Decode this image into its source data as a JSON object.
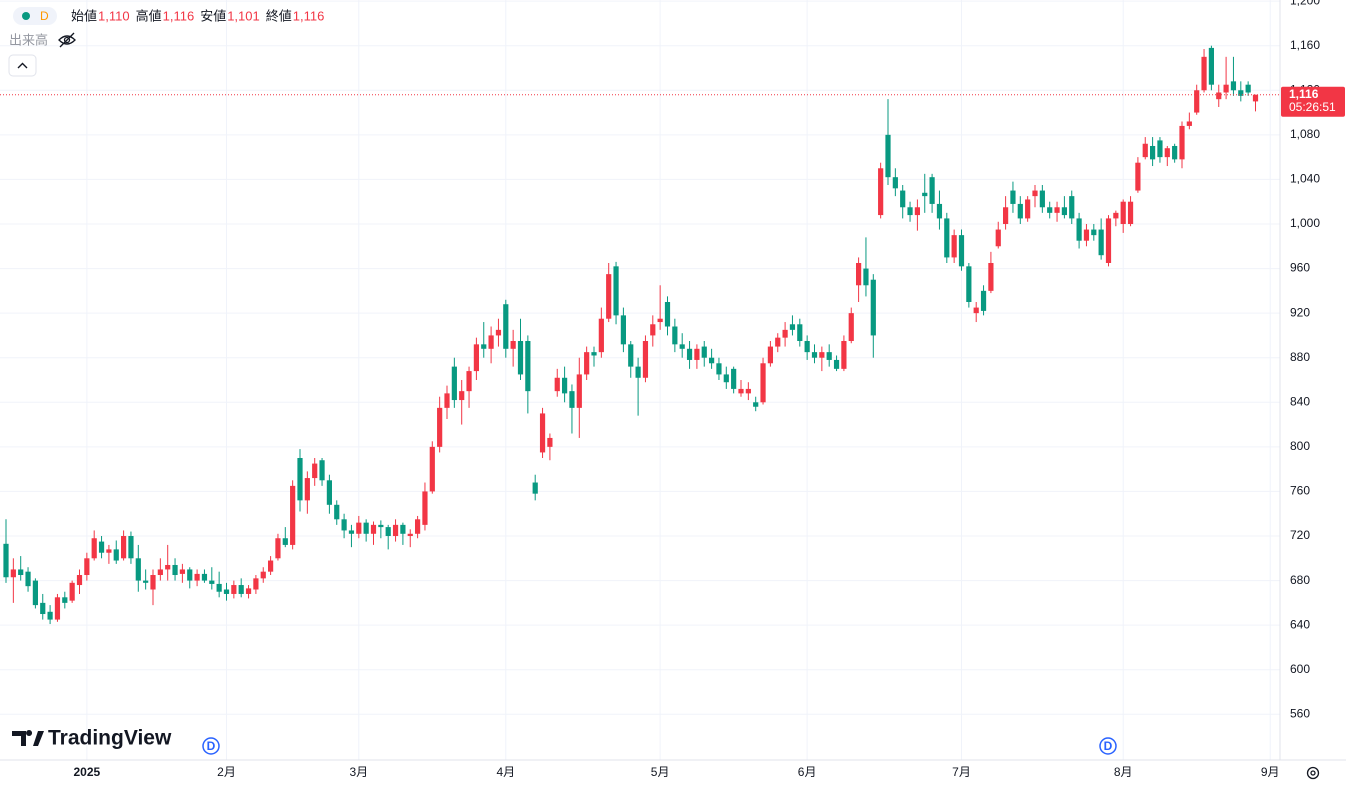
{
  "chart_data": {
    "type": "candlestick",
    "interval": "D",
    "ohlc_legend": [
      {
        "name": "始値",
        "value": 1110,
        "label": "1,110"
      },
      {
        "name": "高値",
        "value": 1116,
        "label": "1,116"
      },
      {
        "name": "安値",
        "value": 1101,
        "label": "1,101"
      },
      {
        "name": "終値",
        "value": 1116,
        "label": "1,116"
      }
    ],
    "volume_label": "出来高",
    "brand": "TradingView",
    "events": [
      "D",
      "D"
    ],
    "last_price": {
      "value": 1116,
      "label": "1,116"
    },
    "countdown": "05:26:51",
    "up_color": "#f23645",
    "down_color": "#089981",
    "grid": true,
    "ylim": [
      519,
      1201
    ],
    "yticks": [
      560,
      600,
      640,
      680,
      720,
      760,
      800,
      840,
      880,
      920,
      960,
      {
        "value": 1000,
        "label": "1,000"
      },
      {
        "value": 1040,
        "label": "1,040"
      },
      {
        "value": 1080,
        "label": "1,080"
      },
      {
        "value": 1120,
        "label": "1,120"
      },
      {
        "value": 1160,
        "label": "1,160"
      },
      {
        "value": 1200,
        "label": "1,200"
      }
    ],
    "categories": [
      null,
      null,
      null,
      null,
      null,
      null,
      null,
      null,
      null,
      null,
      null,
      "2025",
      null,
      null,
      null,
      null,
      null,
      null,
      null,
      null,
      null,
      null,
      null,
      null,
      null,
      null,
      null,
      null,
      null,
      null,
      "2月",
      null,
      null,
      null,
      null,
      null,
      null,
      null,
      null,
      null,
      null,
      null,
      null,
      null,
      null,
      null,
      null,
      null,
      "3月",
      null,
      null,
      null,
      null,
      null,
      null,
      null,
      null,
      null,
      null,
      null,
      null,
      null,
      null,
      null,
      null,
      null,
      null,
      null,
      "4月",
      null,
      null,
      null,
      null,
      null,
      null,
      null,
      null,
      null,
      null,
      null,
      null,
      null,
      null,
      null,
      null,
      null,
      null,
      null,
      null,
      "5月",
      null,
      null,
      null,
      null,
      null,
      null,
      null,
      null,
      null,
      null,
      null,
      null,
      null,
      null,
      null,
      null,
      null,
      null,
      null,
      "6月",
      null,
      null,
      null,
      null,
      null,
      null,
      null,
      null,
      null,
      null,
      null,
      null,
      null,
      null,
      null,
      null,
      null,
      null,
      null,
      null,
      "7月",
      null,
      null,
      null,
      null,
      null,
      null,
      null,
      null,
      null,
      null,
      null,
      null,
      null,
      null,
      null,
      null,
      null,
      null,
      null,
      null,
      null,
      "8月",
      null,
      null,
      null,
      null,
      null,
      null,
      null,
      null,
      null,
      null,
      null,
      null,
      null,
      null,
      null,
      null,
      null,
      null,
      null,
      "9月"
    ],
    "ohlc": [
      [
        713,
        735,
        678,
        683
      ],
      [
        683,
        700,
        660,
        690
      ],
      [
        690,
        702,
        680,
        685
      ],
      [
        688,
        692,
        670,
        675
      ],
      [
        680,
        682,
        655,
        658
      ],
      [
        660,
        668,
        645,
        650
      ],
      [
        652,
        658,
        641,
        645
      ],
      [
        645,
        668,
        643,
        665
      ],
      [
        665,
        670,
        655,
        660
      ],
      [
        662,
        680,
        660,
        678
      ],
      [
        676,
        690,
        668,
        685
      ],
      [
        685,
        705,
        680,
        700
      ],
      [
        700,
        725,
        698,
        718
      ],
      [
        715,
        720,
        700,
        705
      ],
      [
        705,
        712,
        695,
        708
      ],
      [
        708,
        716,
        695,
        698
      ],
      [
        700,
        725,
        698,
        720
      ],
      [
        720,
        724,
        695,
        700
      ],
      [
        700,
        712,
        670,
        680
      ],
      [
        680,
        690,
        672,
        678
      ],
      [
        672,
        690,
        658,
        685
      ],
      [
        685,
        700,
        680,
        690
      ],
      [
        690,
        712,
        680,
        694
      ],
      [
        694,
        700,
        680,
        685
      ],
      [
        686,
        695,
        678,
        690
      ],
      [
        690,
        692,
        673,
        680
      ],
      [
        680,
        690,
        675,
        686
      ],
      [
        686,
        690,
        678,
        680
      ],
      [
        680,
        692,
        672,
        677
      ],
      [
        677,
        688,
        665,
        670
      ],
      [
        672,
        678,
        662,
        668
      ],
      [
        668,
        680,
        664,
        676
      ],
      [
        676,
        682,
        665,
        668
      ],
      [
        668,
        676,
        664,
        673
      ],
      [
        672,
        685,
        668,
        682
      ],
      [
        682,
        692,
        678,
        688
      ],
      [
        688,
        702,
        685,
        698
      ],
      [
        700,
        722,
        698,
        718
      ],
      [
        718,
        728,
        710,
        712
      ],
      [
        712,
        770,
        708,
        765
      ],
      [
        790,
        798,
        742,
        752
      ],
      [
        752,
        778,
        740,
        772
      ],
      [
        772,
        790,
        765,
        785
      ],
      [
        788,
        790,
        765,
        770
      ],
      [
        770,
        775,
        740,
        748
      ],
      [
        748,
        752,
        730,
        735
      ],
      [
        735,
        740,
        718,
        725
      ],
      [
        725,
        730,
        710,
        722
      ],
      [
        722,
        738,
        718,
        732
      ],
      [
        732,
        735,
        715,
        722
      ],
      [
        722,
        733,
        712,
        730
      ],
      [
        730,
        734,
        718,
        728
      ],
      [
        728,
        730,
        708,
        720
      ],
      [
        720,
        735,
        715,
        730
      ],
      [
        730,
        732,
        712,
        722
      ],
      [
        720,
        726,
        710,
        722
      ],
      [
        722,
        738,
        718,
        735
      ],
      [
        730,
        768,
        725,
        760
      ],
      [
        760,
        805,
        758,
        800
      ],
      [
        800,
        845,
        795,
        835
      ],
      [
        835,
        855,
        825,
        848
      ],
      [
        872,
        880,
        835,
        842
      ],
      [
        842,
        860,
        820,
        850
      ],
      [
        850,
        872,
        835,
        868
      ],
      [
        868,
        898,
        860,
        892
      ],
      [
        892,
        912,
        880,
        888
      ],
      [
        888,
        908,
        875,
        900
      ],
      [
        900,
        915,
        890,
        905
      ],
      [
        928,
        932,
        880,
        888
      ],
      [
        888,
        905,
        872,
        895
      ],
      [
        895,
        915,
        860,
        865
      ],
      [
        895,
        900,
        830,
        850
      ],
      [
        768,
        775,
        752,
        758
      ],
      [
        795,
        835,
        790,
        830
      ],
      [
        800,
        812,
        788,
        808
      ],
      [
        850,
        870,
        845,
        862
      ],
      [
        862,
        872,
        840,
        848
      ],
      [
        850,
        856,
        812,
        835
      ],
      [
        835,
        880,
        808,
        865
      ],
      [
        865,
        890,
        860,
        885
      ],
      [
        885,
        890,
        872,
        882
      ],
      [
        885,
        925,
        880,
        915
      ],
      [
        915,
        965,
        912,
        955
      ],
      [
        962,
        966,
        910,
        918
      ],
      [
        918,
        925,
        885,
        892
      ],
      [
        892,
        895,
        862,
        872
      ],
      [
        872,
        880,
        828,
        862
      ],
      [
        862,
        900,
        858,
        895
      ],
      [
        900,
        918,
        890,
        910
      ],
      [
        912,
        945,
        905,
        915
      ],
      [
        930,
        935,
        900,
        908
      ],
      [
        908,
        915,
        885,
        892
      ],
      [
        892,
        902,
        880,
        888
      ],
      [
        888,
        895,
        870,
        878
      ],
      [
        878,
        892,
        870,
        888
      ],
      [
        890,
        895,
        872,
        880
      ],
      [
        880,
        888,
        870,
        875
      ],
      [
        875,
        880,
        860,
        865
      ],
      [
        865,
        872,
        852,
        858
      ],
      [
        870,
        872,
        848,
        852
      ],
      [
        848,
        860,
        845,
        852
      ],
      [
        848,
        858,
        842,
        852
      ],
      [
        840,
        845,
        832,
        836
      ],
      [
        840,
        880,
        838,
        875
      ],
      [
        875,
        895,
        872,
        890
      ],
      [
        890,
        902,
        885,
        898
      ],
      [
        898,
        912,
        890,
        905
      ],
      [
        910,
        918,
        900,
        905
      ],
      [
        910,
        915,
        890,
        895
      ],
      [
        895,
        900,
        878,
        885
      ],
      [
        885,
        892,
        875,
        880
      ],
      [
        880,
        890,
        868,
        885
      ],
      [
        885,
        892,
        872,
        878
      ],
      [
        878,
        882,
        868,
        870
      ],
      [
        870,
        900,
        868,
        895
      ],
      [
        895,
        925,
        893,
        920
      ],
      [
        945,
        970,
        930,
        965
      ],
      [
        960,
        988,
        935,
        945
      ],
      [
        950,
        955,
        880,
        900
      ],
      [
        1008,
        1055,
        1005,
        1050
      ],
      [
        1080,
        1112,
        1035,
        1042
      ],
      [
        1042,
        1050,
        1025,
        1032
      ],
      [
        1030,
        1035,
        1005,
        1015
      ],
      [
        1015,
        1020,
        1002,
        1008
      ],
      [
        1008,
        1022,
        994,
        1015
      ],
      [
        1028,
        1045,
        1010,
        1025
      ],
      [
        1042,
        1045,
        1010,
        1018
      ],
      [
        1018,
        1030,
        995,
        1005
      ],
      [
        1005,
        1010,
        965,
        970
      ],
      [
        970,
        995,
        965,
        990
      ],
      [
        990,
        995,
        958,
        962
      ],
      [
        962,
        965,
        925,
        930
      ],
      [
        920,
        930,
        912,
        925
      ],
      [
        940,
        945,
        918,
        922
      ],
      [
        940,
        975,
        938,
        965
      ],
      [
        980,
        1002,
        978,
        995
      ],
      [
        1000,
        1025,
        995,
        1015
      ],
      [
        1030,
        1038,
        1010,
        1018
      ],
      [
        1018,
        1025,
        1000,
        1005
      ],
      [
        1005,
        1025,
        1002,
        1022
      ],
      [
        1025,
        1035,
        1015,
        1030
      ],
      [
        1030,
        1035,
        1010,
        1015
      ],
      [
        1015,
        1020,
        1005,
        1010
      ],
      [
        1010,
        1020,
        1002,
        1015
      ],
      [
        1015,
        1025,
        1005,
        1008
      ],
      [
        1025,
        1030,
        1000,
        1005
      ],
      [
        1005,
        1010,
        978,
        985
      ],
      [
        985,
        1000,
        980,
        995
      ],
      [
        995,
        1000,
        985,
        990
      ],
      [
        995,
        1005,
        968,
        972
      ],
      [
        965,
        1008,
        962,
        1005
      ],
      [
        1005,
        1012,
        998,
        1010
      ],
      [
        1000,
        1022,
        992,
        1020
      ],
      [
        1000,
        1025,
        998,
        1020
      ],
      [
        1030,
        1060,
        1028,
        1055
      ],
      [
        1060,
        1078,
        1058,
        1072
      ],
      [
        1070,
        1078,
        1052,
        1058
      ],
      [
        1075,
        1078,
        1055,
        1060
      ],
      [
        1060,
        1070,
        1052,
        1068
      ],
      [
        1070,
        1072,
        1055,
        1058
      ],
      [
        1058,
        1092,
        1050,
        1088
      ],
      [
        1088,
        1100,
        1085,
        1092
      ],
      [
        1100,
        1125,
        1098,
        1120
      ],
      [
        1120,
        1157,
        1118,
        1150
      ],
      [
        1158,
        1160,
        1120,
        1125
      ],
      [
        1112,
        1125,
        1105,
        1118
      ],
      [
        1118,
        1150,
        1112,
        1125
      ],
      [
        1128,
        1150,
        1115,
        1120
      ],
      [
        1120,
        1128,
        1110,
        1115
      ],
      [
        1125,
        1128,
        1115,
        1118
      ],
      [
        1110,
        1116,
        1101,
        1116
      ],
      null,
      null
    ]
  }
}
